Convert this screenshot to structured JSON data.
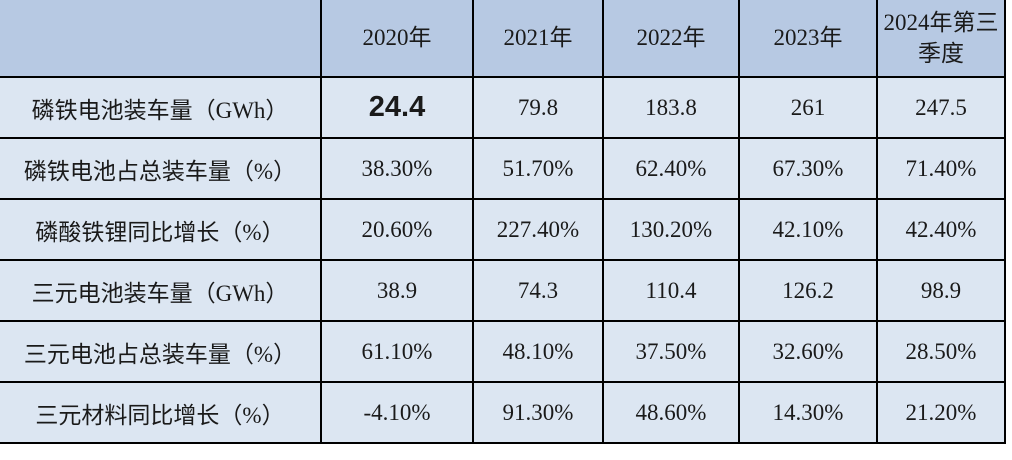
{
  "table": {
    "columns": [
      "",
      "2020年",
      "2021年",
      "2022年",
      "2023年",
      "2024年第三季度"
    ],
    "rows": [
      {
        "label": "磷铁电池装车量（GWh）",
        "values": [
          "24.4",
          "79.8",
          "183.8",
          "261",
          "247.5"
        ]
      },
      {
        "label": "磷铁电池占总装车量（%）",
        "values": [
          "38.30%",
          "51.70%",
          "62.40%",
          "67.30%",
          "71.40%"
        ]
      },
      {
        "label": "磷酸铁锂同比增长（%）",
        "values": [
          "20.60%",
          "227.40%",
          "130.20%",
          "42.10%",
          "42.40%"
        ]
      },
      {
        "label": "三元电池装车量（GWh）",
        "values": [
          "38.9",
          "74.3",
          "110.4",
          "126.2",
          "98.9"
        ]
      },
      {
        "label": "三元电池占总装车量（%）",
        "values": [
          "61.10%",
          "48.10%",
          "37.50%",
          "32.60%",
          "28.50%"
        ]
      },
      {
        "label": "三元材料同比增长（%）",
        "values": [
          "-4.10%",
          "91.30%",
          "48.60%",
          "14.30%",
          "21.20%"
        ]
      }
    ],
    "highlight_cell": {
      "row": 0,
      "col": 0
    }
  },
  "colors": {
    "header_bg": "#B7C9E3",
    "row_bg": "#DCE6F2",
    "border": "#000000",
    "text": "#1A1A1A"
  },
  "chart_data": {
    "type": "table",
    "title": "",
    "categories": [
      "2020年",
      "2021年",
      "2022年",
      "2023年",
      "2024年第三季度"
    ],
    "series": [
      {
        "name": "磷铁电池装车量（GWh）",
        "values": [
          24.4,
          79.8,
          183.8,
          261,
          247.5
        ]
      },
      {
        "name": "磷铁电池占总装车量（%）",
        "values": [
          38.3,
          51.7,
          62.4,
          67.3,
          71.4
        ]
      },
      {
        "name": "磷酸铁锂同比增长（%）",
        "values": [
          20.6,
          227.4,
          130.2,
          42.1,
          42.4
        ]
      },
      {
        "name": "三元电池装车量（GWh）",
        "values": [
          38.9,
          74.3,
          110.4,
          126.2,
          98.9
        ]
      },
      {
        "name": "三元电池占总装车量（%）",
        "values": [
          61.1,
          48.1,
          37.5,
          32.6,
          28.5
        ]
      },
      {
        "name": "三元材料同比增长（%）",
        "values": [
          -4.1,
          91.3,
          48.6,
          14.3,
          21.2
        ]
      }
    ]
  }
}
